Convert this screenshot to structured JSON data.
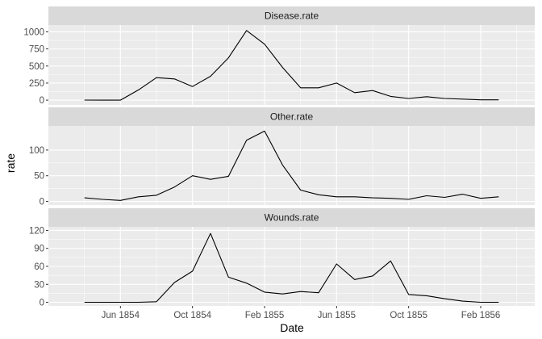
{
  "chart_data": {
    "type": "line",
    "facet_layout": "stacked-vertical",
    "xlabel": "Date",
    "ylabel": "rate",
    "x_ticks": [
      "Jun 1854",
      "Oct 1854",
      "Feb 1855",
      "Jun 1855",
      "Oct 1855",
      "Feb 1856"
    ],
    "x_range": [
      "1854-02",
      "1856-05"
    ],
    "grid": true,
    "colors": {
      "panel_bg": "#ebebeb",
      "strip_bg": "#d9d9d9",
      "gridline": "#ffffff",
      "line": "#000000"
    },
    "x": [
      "1854-04",
      "1854-05",
      "1854-06",
      "1854-07",
      "1854-08",
      "1854-09",
      "1854-10",
      "1854-11",
      "1854-12",
      "1855-01",
      "1855-02",
      "1855-03",
      "1855-04",
      "1855-05",
      "1855-06",
      "1855-07",
      "1855-08",
      "1855-09",
      "1855-10",
      "1855-11",
      "1855-12",
      "1856-01",
      "1856-02",
      "1856-03"
    ],
    "panels": [
      {
        "name": "Disease.rate",
        "y_ticks": [
          0,
          250,
          500,
          750,
          1000
        ],
        "ylim": [
          -70,
          1100
        ],
        "values": [
          1,
          0,
          0,
          150,
          330,
          310,
          200,
          350,
          620,
          1020,
          820,
          480,
          180,
          180,
          250,
          110,
          140,
          55,
          25,
          50,
          25,
          15,
          5,
          5
        ]
      },
      {
        "name": "Other.rate",
        "y_ticks": [
          0,
          50,
          100
        ],
        "ylim": [
          -7,
          147
        ],
        "values": [
          7,
          4,
          2,
          9,
          12,
          28,
          50,
          43,
          49,
          119,
          137,
          71,
          22,
          13,
          9,
          9,
          7,
          6,
          4,
          11,
          8,
          14,
          6,
          9
        ]
      },
      {
        "name": "Wounds.rate",
        "y_ticks": [
          0,
          30,
          60,
          90,
          120
        ],
        "ylim": [
          -6,
          126
        ],
        "values": [
          0,
          0,
          0,
          0,
          1,
          33,
          52,
          115,
          42,
          32,
          17,
          14,
          18,
          16,
          64,
          38,
          44,
          69,
          13,
          11,
          6,
          2,
          0,
          0
        ]
      }
    ]
  }
}
